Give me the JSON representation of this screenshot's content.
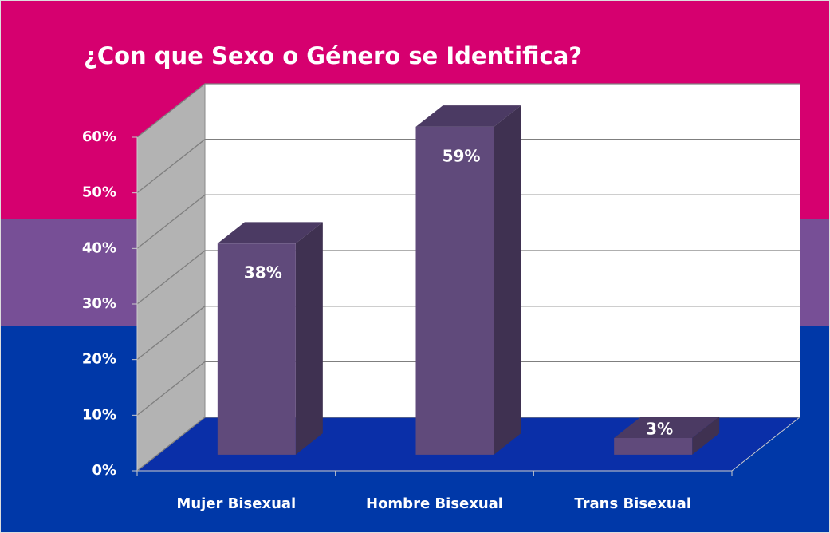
{
  "chart_data": {
    "type": "bar",
    "title": "¿Con que Sexo o Género se Identifica?",
    "categories": [
      "Mujer Bisexual",
      "Hombre Bisexual",
      "Trans Bisexual"
    ],
    "values": [
      38,
      59,
      3
    ],
    "value_labels": [
      "38%",
      "59%",
      "3%"
    ],
    "color": "#604a7b",
    "ylim": [
      0,
      60
    ],
    "yticks": [
      {
        "value": 0,
        "label": "0%"
      },
      {
        "value": 10,
        "label": "10%"
      },
      {
        "value": 20,
        "label": "20%"
      },
      {
        "value": 30,
        "label": "30%"
      },
      {
        "value": 40,
        "label": "40%"
      },
      {
        "value": 50,
        "label": "50%"
      },
      {
        "value": 60,
        "label": "60%"
      }
    ],
    "grid": true
  }
}
